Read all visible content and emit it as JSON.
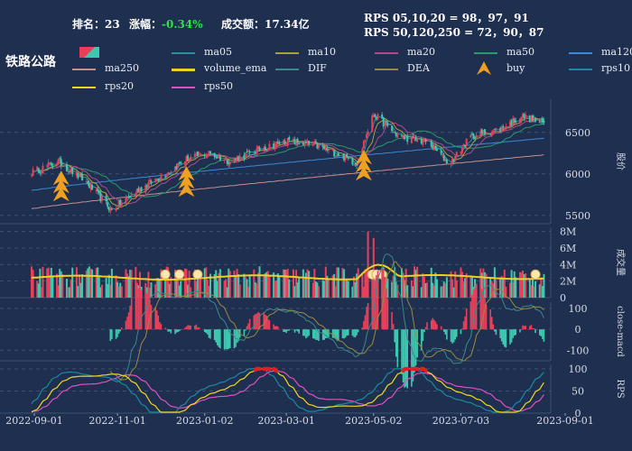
{
  "header": {
    "rank_label": "排名：",
    "rank_value": "23",
    "change_label": "涨幅：",
    "change_value": "-0.34%",
    "turnover_label": "成交额：",
    "turnover_value": "17.34亿",
    "rps_line1": "RPS 05,10,20 = 98，97，91",
    "rps_line2": "RPS 50,120,250 = 72，90，87"
  },
  "ticker": "铁路公路",
  "colors": {
    "up": "#e8405a",
    "down": "#3fc8b0",
    "ma05": "#2f8f9f",
    "ma10": "#a8a040",
    "ma20": "#b04a8a",
    "ma50": "#2a9a6a",
    "ma120": "#3a8ad8",
    "ma250": "#c8908a",
    "volume_ema": "#f0d020",
    "DIF": "#3a8a8a",
    "DEA": "#9a8a40",
    "buy": "#f0a020",
    "rps10": "#1a8aa0",
    "rps20": "#f0d820",
    "rps50": "#e050c0",
    "grid": "#3d5072"
  },
  "legend": [
    {
      "name": "ma05",
      "color_key": "ma05"
    },
    {
      "name": "ma10",
      "color_key": "ma10"
    },
    {
      "name": "ma20",
      "color_key": "ma20"
    },
    {
      "name": "ma50",
      "color_key": "ma50"
    },
    {
      "name": "ma120",
      "color_key": "ma120"
    },
    {
      "name": "ma250",
      "color_key": "ma250"
    },
    {
      "name": "volume_ema",
      "color_key": "volume_ema"
    },
    {
      "name": "DIF",
      "color_key": "DIF"
    },
    {
      "name": "DEA",
      "color_key": "DEA"
    },
    {
      "name": "buy",
      "color_key": "buy",
      "marker": true
    },
    {
      "name": "rps10",
      "color_key": "rps10"
    },
    {
      "name": "rps20",
      "color_key": "rps20"
    },
    {
      "name": "rps50",
      "color_key": "rps50"
    }
  ],
  "chart_data": {
    "type": "line",
    "date_ticks": [
      "2022-09-01",
      "2022-11-01",
      "2023-01-02",
      "2023-03-01",
      "2023-05-02",
      "2023-07-03",
      "2023-09-01"
    ],
    "price": {
      "ylabel": "股价",
      "yticks": [
        5500,
        6000,
        6500
      ],
      "ylim": [
        5400,
        6900
      ],
      "keypoints": [
        [
          "2022-09-01",
          6020
        ],
        [
          "2022-09-20",
          6150
        ],
        [
          "2022-10-10",
          5900
        ],
        [
          "2022-10-28",
          5560
        ],
        [
          "2022-11-15",
          5800
        ],
        [
          "2022-12-05",
          6000
        ],
        [
          "2022-12-20",
          6180
        ],
        [
          "2023-01-05",
          6250
        ],
        [
          "2023-01-20",
          6150
        ],
        [
          "2023-02-10",
          6300
        ],
        [
          "2023-03-01",
          6400
        ],
        [
          "2023-03-20",
          6350
        ],
        [
          "2023-04-05",
          6250
        ],
        [
          "2023-04-20",
          6130
        ],
        [
          "2023-05-02",
          6720
        ],
        [
          "2023-05-20",
          6450
        ],
        [
          "2023-06-10",
          6380
        ],
        [
          "2023-06-25",
          6120
        ],
        [
          "2023-07-10",
          6450
        ],
        [
          "2023-08-01",
          6550
        ],
        [
          "2023-08-15",
          6700
        ],
        [
          "2023-09-01",
          6600
        ]
      ],
      "ma120_start_end": [
        5800,
        6430
      ],
      "ma250_start_end": [
        5580,
        6230
      ],
      "buy_signals": [
        {
          "date": "2022-09-22",
          "count": 3
        },
        {
          "date": "2022-12-20",
          "count": 3
        },
        {
          "date": "2023-04-25",
          "count": 3
        }
      ]
    },
    "volume": {
      "ylabel": "成交量",
      "yticks_labels": [
        "0",
        "2M",
        "4M",
        "6M",
        "8M"
      ],
      "ylim": [
        0,
        8500000
      ],
      "ema_start_end": [
        2400000,
        2500000
      ],
      "spikes": [
        {
          "date": "2023-04-28",
          "value": 8000000
        },
        {
          "date": "2023-05-02",
          "value": 7200000
        },
        {
          "date": "2022-12-25",
          "value": 5200000
        }
      ],
      "highlight_dates": [
        "2022-12-05",
        "2022-12-15",
        "2022-12-28",
        "2023-05-01",
        "2023-05-04",
        "2023-05-08",
        "2023-08-25"
      ]
    },
    "macd": {
      "ylabel": "close-macd",
      "yticks": [
        -100,
        0,
        100
      ],
      "ylim": [
        -150,
        130
      ]
    },
    "rps": {
      "ylabel": "RPS",
      "yticks": [
        0,
        50,
        100
      ],
      "ylim": [
        0,
        110
      ],
      "highlight_threshold": 95
    }
  }
}
